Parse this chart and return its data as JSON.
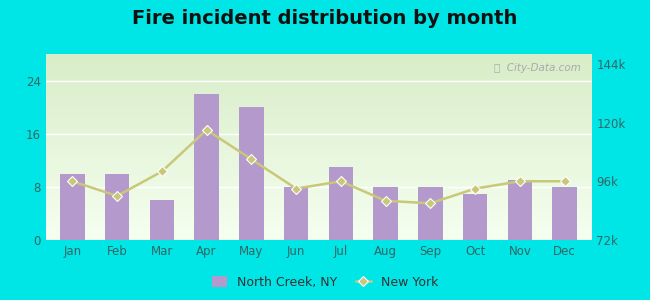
{
  "title": "Fire incident distribution by month",
  "months": [
    "Jan",
    "Feb",
    "Mar",
    "Apr",
    "May",
    "Jun",
    "Jul",
    "Aug",
    "Sep",
    "Oct",
    "Nov",
    "Dec"
  ],
  "bar_values": [
    10,
    10,
    6,
    22,
    20,
    8,
    11,
    8,
    8,
    7,
    9,
    8
  ],
  "line_values": [
    96000,
    90000,
    100000,
    117000,
    105000,
    93000,
    96000,
    88000,
    87000,
    93000,
    96000,
    96000
  ],
  "bar_color": "#b399cc",
  "line_color": "#c8c878",
  "ylim_left": [
    0,
    28
  ],
  "ylim_right": [
    72000,
    148000
  ],
  "yticks_left": [
    0,
    8,
    16,
    24
  ],
  "yticks_right": [
    72000,
    96000,
    120000,
    144000
  ],
  "ytick_labels_right": [
    "72k",
    "96k",
    "120k",
    "144k"
  ],
  "background_color": "#00e5e5",
  "title_fontsize": 14,
  "watermark": "ⓘ  City-Data.com",
  "legend_nc_label": "North Creek, NY",
  "legend_ny_label": "New York"
}
